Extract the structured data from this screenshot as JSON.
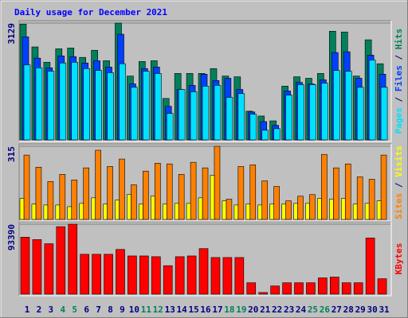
{
  "chart_data": [
    {
      "type": "bar",
      "title": "Daily usage for December 2021",
      "categories": [
        "1",
        "2",
        "3",
        "4",
        "5",
        "6",
        "7",
        "8",
        "9",
        "10",
        "11",
        "12",
        "13",
        "14",
        "15",
        "16",
        "17",
        "18",
        "19",
        "20",
        "21",
        "22",
        "23",
        "24",
        "25",
        "26",
        "27",
        "28",
        "29",
        "30",
        "31"
      ],
      "category_colors": [
        "#000080",
        "#000080",
        "#000080",
        "#00805c",
        "#00805c",
        "#000080",
        "#000080",
        "#000080",
        "#000080",
        "#000080",
        "#00805c",
        "#00805c",
        "#000080",
        "#000080",
        "#000080",
        "#000080",
        "#000080",
        "#00805c",
        "#00805c",
        "#000080",
        "#000080",
        "#000080",
        "#000080",
        "#000080",
        "#00805c",
        "#00805c",
        "#000080",
        "#000080",
        "#000080",
        "#000080",
        "#000080"
      ],
      "legend_separator": " / ",
      "ylim": [
        0,
        3129
      ],
      "yticks": [
        3129
      ],
      "grid": true,
      "series": [
        {
          "name": "Pages",
          "color": "#00e0ff",
          "values": [
            2010,
            1930,
            1840,
            2060,
            2080,
            1910,
            1860,
            1800,
            2040,
            1410,
            1840,
            1780,
            710,
            1350,
            1290,
            1440,
            1460,
            1140,
            1240,
            690,
            260,
            300,
            1200,
            1480,
            1480,
            1520,
            1860,
            1840,
            1410,
            2140,
            1410
          ]
        },
        {
          "name": "Files",
          "color": "#0040ff",
          "values": [
            2760,
            2190,
            1930,
            2250,
            2230,
            2060,
            2120,
            1950,
            2830,
            1500,
            1910,
            1950,
            900,
            1350,
            1460,
            1760,
            1590,
            1650,
            1350,
            750,
            490,
            390,
            1310,
            1540,
            1500,
            1610,
            2340,
            2360,
            1650,
            2270,
            1760
          ]
        },
        {
          "name": "Hits",
          "color": "#00805c",
          "values": [
            3100,
            2490,
            2080,
            2440,
            2460,
            2210,
            2400,
            2120,
            3129,
            1710,
            2100,
            2120,
            1110,
            1780,
            1780,
            1780,
            1910,
            1710,
            1690,
            770,
            640,
            510,
            1440,
            1690,
            1650,
            1780,
            2910,
            2890,
            1710,
            2680,
            2040
          ]
        }
      ]
    },
    {
      "type": "bar",
      "ylim": [
        0,
        315
      ],
      "yticks": [
        315
      ],
      "grid": true,
      "series": [
        {
          "name": "Sites",
          "color": "#ff8000",
          "values": [
            277,
            225,
            163,
            194,
            170,
            222,
            298,
            228,
            260,
            149,
            208,
            242,
            239,
            194,
            246,
            222,
            315,
            87,
            228,
            235,
            166,
            142,
            80,
            100,
            107,
            280,
            222,
            239,
            183,
            173,
            277
          ]
        },
        {
          "name": "Visits",
          "color": "#ffff00",
          "values": [
            90,
            66,
            62,
            62,
            55,
            69,
            93,
            66,
            83,
            107,
            66,
            100,
            66,
            69,
            69,
            93,
            190,
            80,
            62,
            66,
            62,
            66,
            66,
            69,
            69,
            90,
            87,
            90,
            66,
            69,
            80
          ]
        }
      ]
    },
    {
      "type": "bar",
      "ylim": [
        0,
        93390
      ],
      "yticks": [
        93390
      ],
      "grid": true,
      "series": [
        {
          "name": "KBytes",
          "color": "#ff0000",
          "values": [
            76000,
            72800,
            67300,
            90100,
            93390,
            53200,
            53200,
            53200,
            59700,
            51000,
            51000,
            50000,
            38000,
            50000,
            51000,
            60800,
            48900,
            48900,
            48900,
            15200,
            2200,
            10900,
            15200,
            15200,
            15200,
            21700,
            22800,
            15200,
            15200,
            75000,
            20600
          ]
        }
      ]
    }
  ]
}
